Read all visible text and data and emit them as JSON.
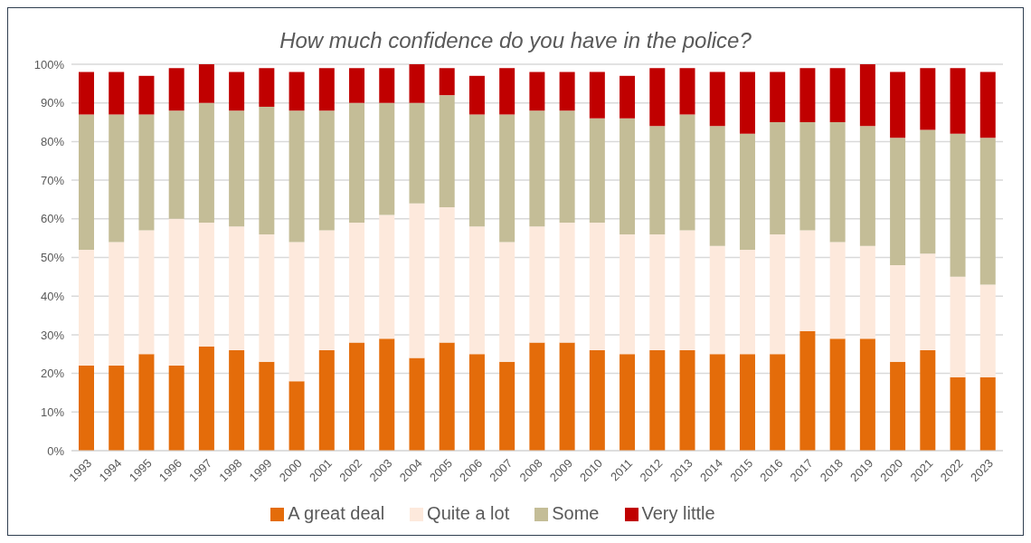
{
  "chart_data": {
    "type": "bar",
    "title": "How much confidence do you have in the police?",
    "stacked": true,
    "categories": [
      "1993",
      "1994",
      "1995",
      "1996",
      "1997",
      "1998",
      "1999",
      "2000",
      "2001",
      "2002",
      "2003",
      "2004",
      "2005",
      "2006",
      "2007",
      "2008",
      "2009",
      "2010",
      "2011",
      "2012",
      "2013",
      "2014",
      "2015",
      "2016",
      "2017",
      "2018",
      "2019",
      "2020",
      "2021",
      "2022",
      "2023"
    ],
    "series": [
      {
        "name": "A great deal",
        "color": "#e46c0a",
        "values": [
          22,
          22,
          25,
          22,
          27,
          26,
          23,
          18,
          26,
          28,
          29,
          24,
          28,
          25,
          23,
          28,
          28,
          26,
          25,
          26,
          26,
          25,
          25,
          25,
          31,
          29,
          29,
          23,
          26,
          19,
          19
        ]
      },
      {
        "name": "Quite a lot",
        "color": "#fde9dc",
        "values": [
          30,
          32,
          32,
          38,
          32,
          32,
          33,
          36,
          31,
          31,
          32,
          40,
          35,
          33,
          31,
          30,
          31,
          33,
          31,
          30,
          31,
          28,
          27,
          31,
          26,
          25,
          24,
          25,
          25,
          26,
          24
        ]
      },
      {
        "name": "Some",
        "color": "#c4bd97",
        "values": [
          35,
          33,
          30,
          28,
          31,
          30,
          33,
          34,
          31,
          31,
          29,
          26,
          29,
          29,
          33,
          30,
          29,
          27,
          30,
          28,
          30,
          31,
          30,
          29,
          28,
          31,
          31,
          33,
          32,
          37,
          38
        ]
      },
      {
        "name": "Very little",
        "color": "#c00000",
        "values": [
          11,
          11,
          10,
          11,
          10,
          10,
          10,
          10,
          11,
          9,
          9,
          10,
          7,
          10,
          12,
          10,
          10,
          12,
          11,
          15,
          12,
          14,
          16,
          13,
          14,
          14,
          16,
          17,
          16,
          17,
          17
        ]
      }
    ],
    "ylim": [
      0,
      100
    ],
    "yticks": [
      {
        "value": 0,
        "label": "0%"
      },
      {
        "value": 10,
        "label": "10%"
      },
      {
        "value": 20,
        "label": "20%"
      },
      {
        "value": 30,
        "label": "30%"
      },
      {
        "value": 40,
        "label": "40%"
      },
      {
        "value": 50,
        "label": "50%"
      },
      {
        "value": 60,
        "label": "60%"
      },
      {
        "value": 70,
        "label": "70%"
      },
      {
        "value": 80,
        "label": "80%"
      },
      {
        "value": 90,
        "label": "90%"
      },
      {
        "value": 100,
        "label": "100%"
      }
    ],
    "grid": "y",
    "legend": "bottom"
  }
}
